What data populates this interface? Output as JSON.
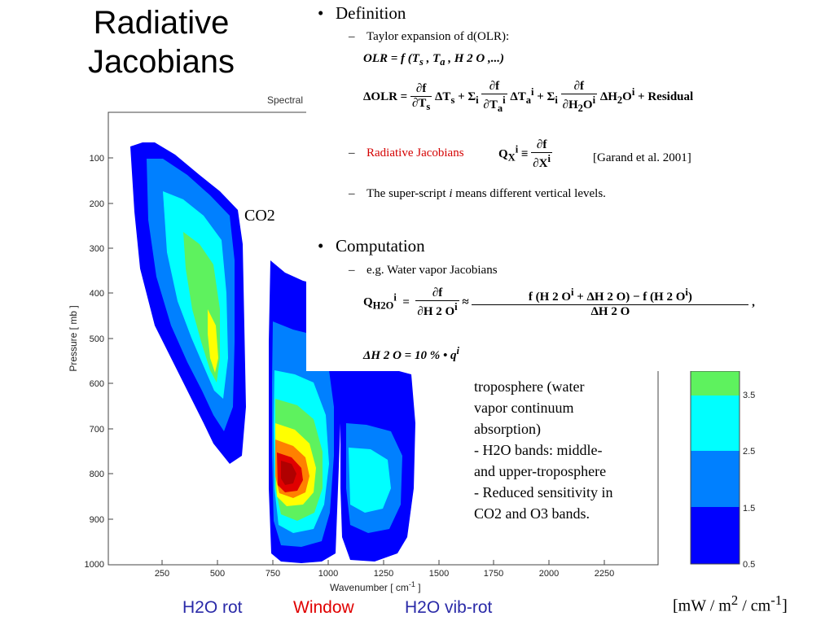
{
  "title": {
    "line1": "Radiative",
    "line2": "Jacobians"
  },
  "plot": {
    "header_fragment": "Spectral",
    "ylabel": "Pressure [ mb ]",
    "xlabel": "Wavenumber [ cm",
    "xlabel_sup": "-1",
    "xlabel_end": " ]",
    "y_ticks": [
      "100",
      "200",
      "300",
      "400",
      "500",
      "600",
      "700",
      "800",
      "900",
      "1000"
    ],
    "x_ticks": [
      "250",
      "500",
      "750",
      "1000",
      "1250",
      "1500",
      "1750",
      "2000",
      "2250"
    ],
    "region_label": "CO2"
  },
  "colorbar": {
    "ticks": [
      "3.5",
      "2.5",
      "1.5",
      "0.5"
    ],
    "colors": [
      "#5ef25e",
      "#00ffff",
      "#0080ff",
      "#0000ff"
    ],
    "units_main": "[mW / m",
    "units_sup1": "2",
    "units_mid": " / cm",
    "units_sup2": "-1",
    "units_end": "]"
  },
  "bottom_labels": {
    "h2o_rot": "H2O rot",
    "window": "Window",
    "h2o_vib_rot": "H2O vib-rot",
    "h2o_rot_color": "#2a2aa8",
    "window_color": "#e00000",
    "h2o_vib_rot_color": "#2a2aa8"
  },
  "overlay": {
    "definition": "Definition",
    "taylor": "Taylor expansion of  d(OLR):",
    "olr_eq": "OLR  =  f (T",
    "olr_eq_s": "s",
    "olr_eq_mid": " , T",
    "olr_eq_a": "a",
    "olr_eq_end": " , H 2 O ,...)",
    "delta_olr": "ΔOLR  =",
    "residual": "+ Residual",
    "radiative_jacobians": "Radiative Jacobians",
    "garand": "[Garand et al. 2001]",
    "superscript_note_pre": "The super-script ",
    "superscript_note_i": "i",
    "superscript_note_post": " means different vertical levels.",
    "computation": "Computation",
    "eg_wv": "e.g. Water vapor Jacobians",
    "delta_h2o_eq": "ΔH 2 O  =  10  %  • q"
  },
  "body_text": {
    "line1": "troposphere (water",
    "line2": "vapor continuum",
    "line3": "absorption)",
    "line4": " - H2O bands: middle-",
    "line5": "and upper-troposphere",
    "line6": " - Reduced sensitivity in",
    "line7": "CO2 and O3 bands."
  }
}
